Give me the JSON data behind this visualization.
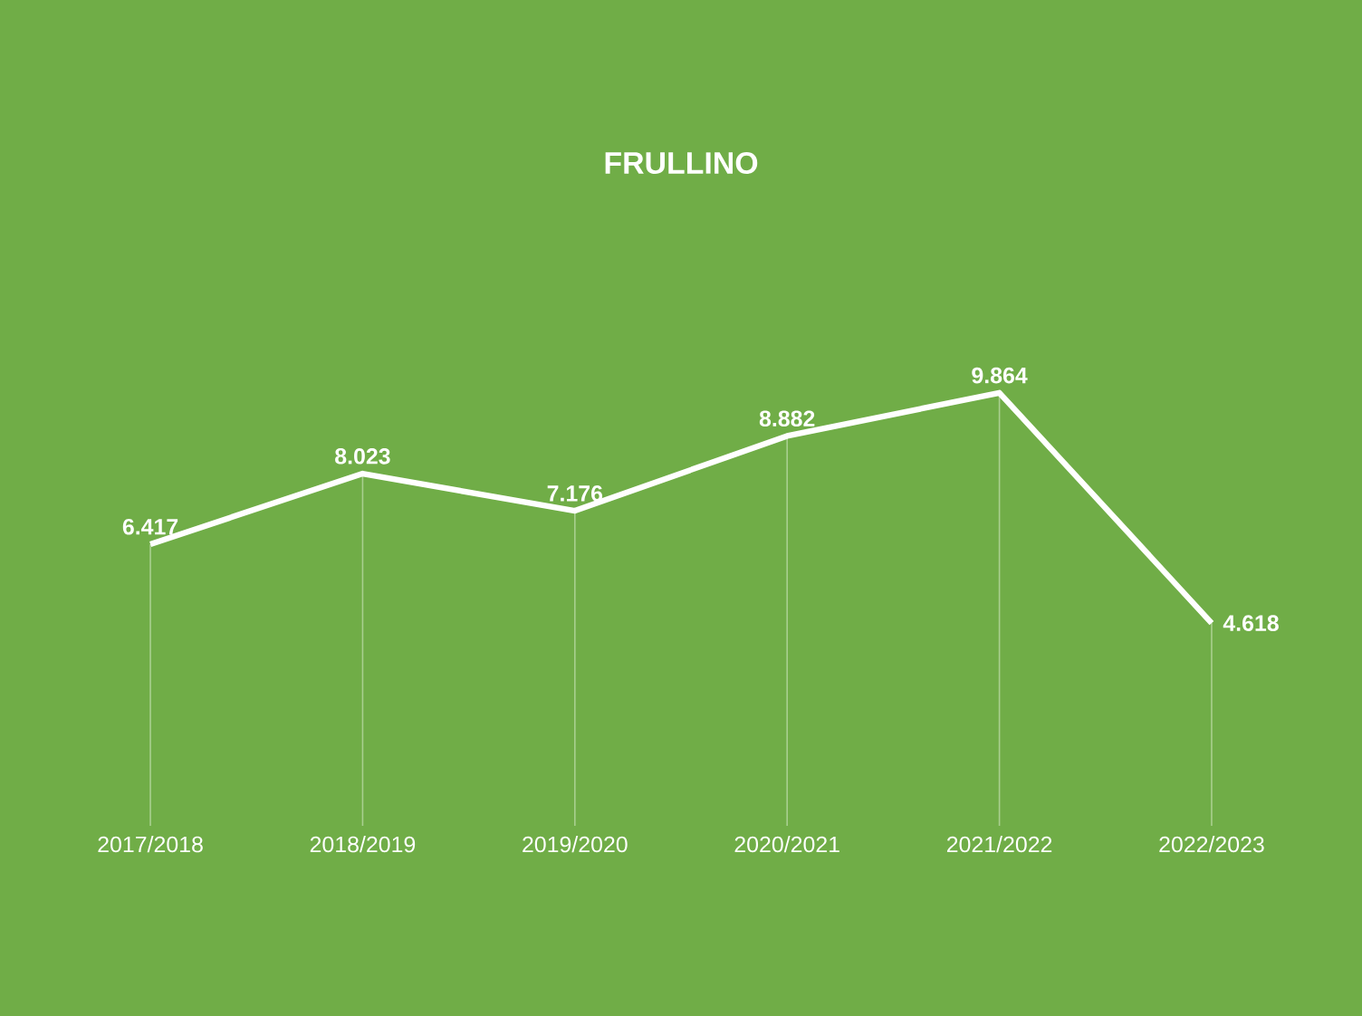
{
  "chart_data": {
    "type": "line",
    "title": "FRULLINO",
    "categories": [
      "2017/2018",
      "2018/2019",
      "2019/2020",
      "2020/2021",
      "2021/2022",
      "2022/2023"
    ],
    "series": [
      {
        "color": "#ffffff",
        "values": [
          6417,
          8023,
          7176,
          8882,
          9864,
          4618
        ],
        "value_labels": [
          "6.417",
          "8.023",
          "7.176",
          "8.882",
          "9.864",
          "4.618"
        ]
      }
    ],
    "tick_labels": "x",
    "grid": "x",
    "marker": "none",
    "line_style": "solid"
  }
}
